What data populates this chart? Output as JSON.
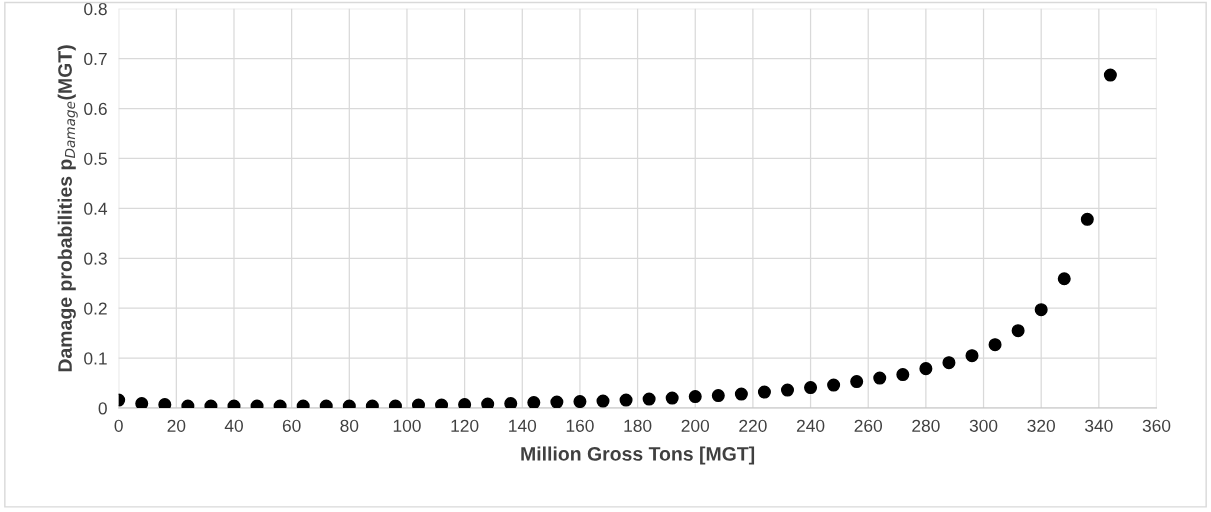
{
  "chart_data": {
    "type": "scatter",
    "xlabel": "Million Gross Tons [MGT]",
    "ylabel": "Damage probabilities p$_{Damage}$(MGT)",
    "x": [
      0,
      8,
      16,
      24,
      32,
      40,
      48,
      56,
      64,
      72,
      80,
      88,
      96,
      104,
      112,
      120,
      128,
      136,
      144,
      152,
      160,
      168,
      176,
      184,
      192,
      200,
      208,
      216,
      224,
      232,
      240,
      248,
      256,
      264,
      272,
      280,
      288,
      296,
      304,
      312,
      320,
      328,
      336,
      344
    ],
    "series": [
      {
        "color": "#000000",
        "values": [
          0.016,
          0.009,
          0.007,
          0.004,
          0.004,
          0.004,
          0.004,
          0.004,
          0.004,
          0.004,
          0.004,
          0.004,
          0.004,
          0.006,
          0.006,
          0.007,
          0.008,
          0.009,
          0.011,
          0.012,
          0.013,
          0.014,
          0.016,
          0.018,
          0.02,
          0.023,
          0.025,
          0.028,
          0.032,
          0.036,
          0.041,
          0.046,
          0.053,
          0.06,
          0.067,
          0.079,
          0.091,
          0.105,
          0.127,
          0.155,
          0.197,
          0.259,
          0.378,
          0.667
        ]
      }
    ],
    "xlim": [
      0,
      360
    ],
    "xticks": [
      0,
      20,
      40,
      60,
      80,
      100,
      120,
      140,
      160,
      180,
      200,
      220,
      240,
      260,
      280,
      300,
      320,
      340,
      360
    ],
    "ylim": [
      0,
      0.8
    ],
    "yticks": [
      {
        "value": 0,
        "label": "0"
      },
      0.1,
      0.2,
      0.3,
      0.4,
      0.5,
      0.6,
      0.7,
      0.8
    ],
    "grid": true,
    "marker": "circle",
    "legend": false
  }
}
